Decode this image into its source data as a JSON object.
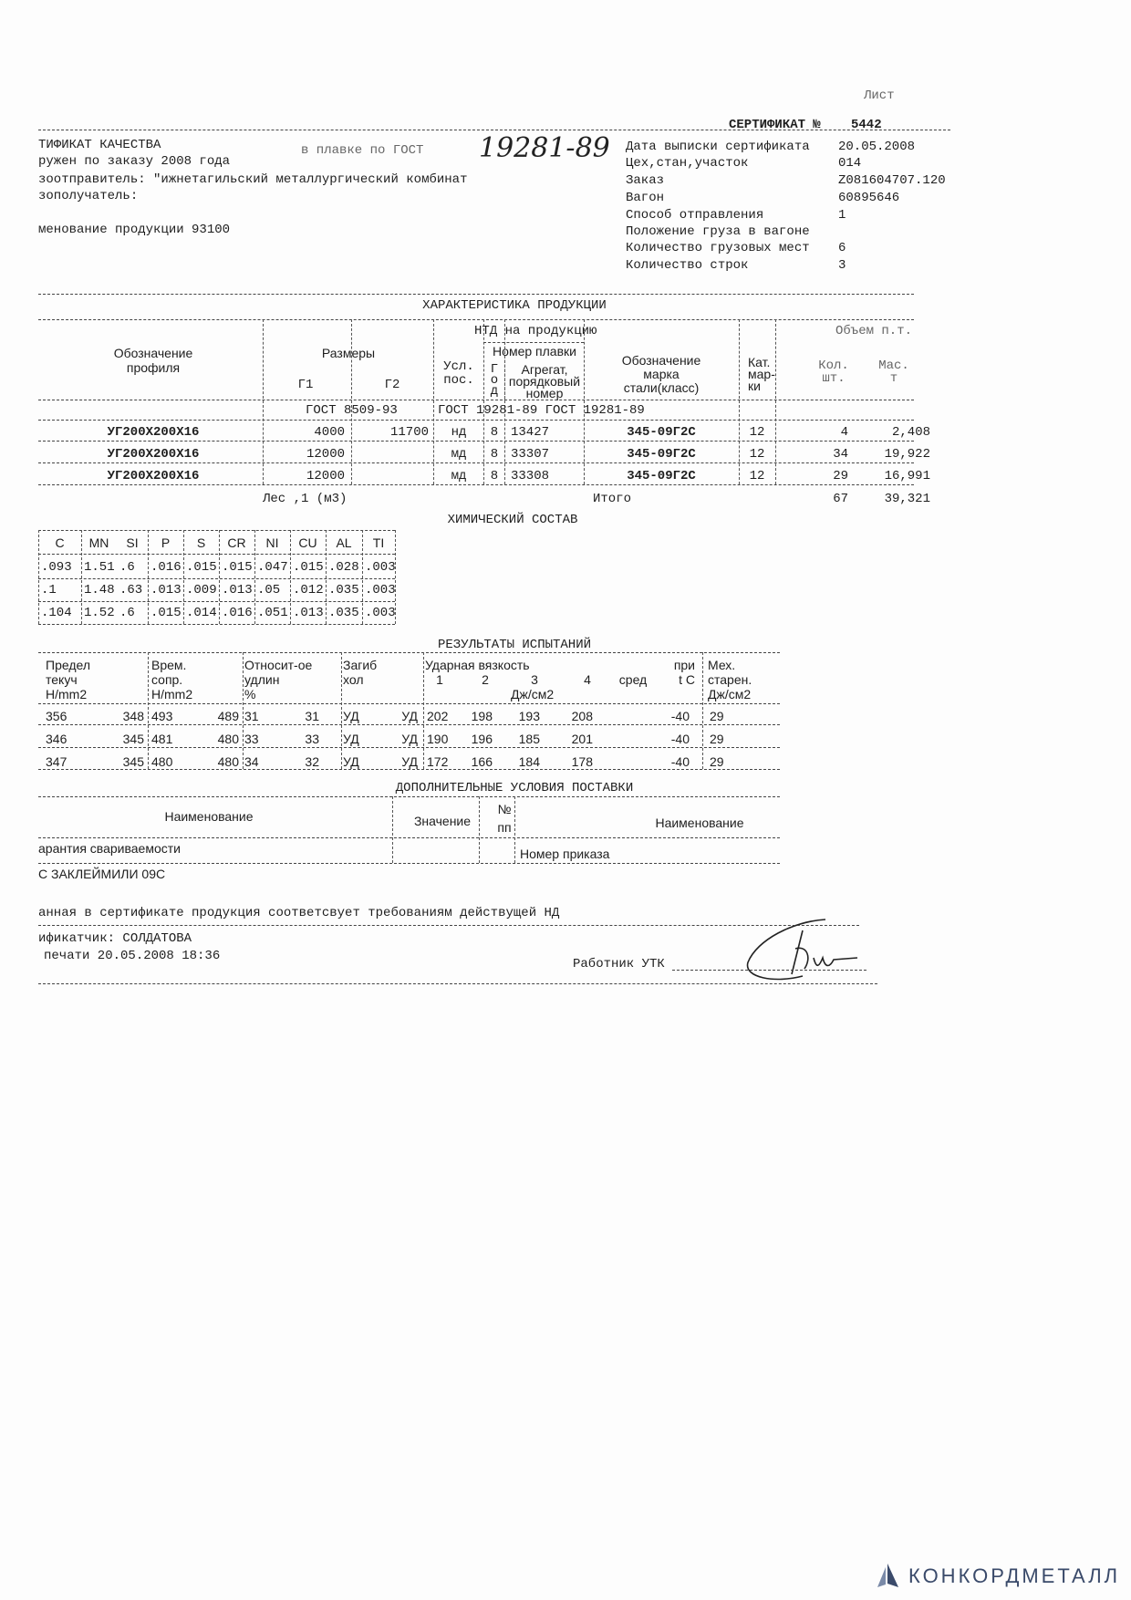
{
  "header": {
    "sheet_label": "Лист",
    "title": "СЕРТИФИКАТ №",
    "number": "5442",
    "left_lines": [
      "ТИФИКАТ КАЧЕСТВА",
      "ружен по заказу 2008 года",
      "зоотправитель: \"ижнетагильский металлургический комбинат",
      "зополучатель:",
      "менование продукции 93100"
    ],
    "stamp_text": "в плавке по ГОСТ",
    "handwritten_note": "19281-89",
    "fields": [
      {
        "label": "Дата выписки сертификата",
        "value": "20.05.2008"
      },
      {
        "label": "Цех,стан,участок",
        "value": "014"
      },
      {
        "label": "Заказ",
        "value": "Z081604707.120"
      },
      {
        "label": "Вагон",
        "value": "60895646"
      },
      {
        "label": "Способ отправления",
        "value": "1"
      },
      {
        "label": "Положение груза в вагоне",
        "value": ""
      },
      {
        "label": "Количество грузовых мест",
        "value": "6"
      },
      {
        "label": "Количество строк",
        "value": "3"
      }
    ]
  },
  "product": {
    "title": "ХАРАКТЕРИСТИКА ПРОДУКЦИИ",
    "ntd": "НТД на продукцию",
    "volume": "Объем п.т.",
    "h_profile": [
      "Обозначение",
      "профиля"
    ],
    "h_sizes": "Размеры",
    "h_g1": "Г1",
    "h_g2": "Г2",
    "h_usl": [
      "Усл.",
      "пос."
    ],
    "h_heat": "Номер плавки",
    "h_year": [
      "Г",
      "о",
      "д"
    ],
    "h_unit": [
      "Агрегат,",
      "порядковый",
      "номер"
    ],
    "h_grade": [
      "Обозначение",
      "марка",
      "стали(класс)"
    ],
    "h_cat": [
      "Кат.",
      "мар-",
      "ки"
    ],
    "h_qty": [
      "Кол.",
      "шт."
    ],
    "h_mass": [
      "Мас.",
      "т"
    ],
    "gost_row": [
      "ГОСТ 8509-93",
      "ГОСТ 19281-89 ГОСТ 19281-89"
    ],
    "rows": [
      [
        "УГ200Х200Х16",
        "4000",
        "11700",
        "нд",
        "8",
        "13427",
        "345-09Г2С",
        "12",
        "4",
        "2,408"
      ],
      [
        "УГ200Х200Х16",
        "12000",
        "",
        "мд",
        "8",
        "33307",
        "345-09Г2С",
        "12",
        "34",
        "19,922"
      ],
      [
        "УГ200Х200Х16",
        "12000",
        "",
        "мд",
        "8",
        "33308",
        "345-09Г2С",
        "12",
        "29",
        "16,991"
      ]
    ],
    "wood": "Лес ,1 (м3)",
    "total_label": "Итого",
    "total_qty": "67",
    "total_mass": "39,321"
  },
  "chemistry": {
    "title": "ХИМИЧЕСКИЙ СОСТАВ",
    "headers": [
      "C",
      "MN",
      "SI",
      "P",
      "S",
      "CR",
      "NI",
      "CU",
      "AL",
      "TI"
    ],
    "rows": [
      [
        ".093",
        "1.51",
        ".6",
        ".016",
        ".015",
        ".015",
        ".047",
        ".015",
        ".028",
        ".003"
      ],
      [
        ".1",
        "1.48",
        ".63",
        ".013",
        ".009",
        ".013",
        ".05",
        ".012",
        ".035",
        ".003"
      ],
      [
        ".104",
        "1.52",
        ".6",
        ".015",
        ".014",
        ".016",
        ".051",
        ".013",
        ".035",
        ".003"
      ]
    ]
  },
  "tests": {
    "title": "РЕЗУЛЬТАТЫ ИСПЫТАНИЙ",
    "h_yield": [
      "Предел",
      "текуч",
      "Н/mm2"
    ],
    "h_tensile": [
      "Врем.",
      "сопр.",
      "Н/mm2"
    ],
    "h_elong": [
      "Относит-ое",
      "удлин",
      "%"
    ],
    "h_bend": [
      "Загиб",
      "хол"
    ],
    "h_impact": "Ударная вязкость",
    "h_impact_cols": [
      "1",
      "2",
      "3",
      "4",
      "сред"
    ],
    "h_impact_unit": "Дж/см2",
    "h_temp": [
      "при",
      "t C"
    ],
    "h_aging": [
      "Мех.",
      "старен.",
      "Дж/см2"
    ],
    "rows": [
      [
        "356",
        "348",
        "493",
        "489",
        "31",
        "31",
        "УД",
        "УД",
        "202",
        "198",
        "193",
        "208",
        "",
        "-40",
        "29"
      ],
      [
        "346",
        "345",
        "481",
        "480",
        "33",
        "33",
        "УД",
        "УД",
        "190",
        "196",
        "185",
        "201",
        "",
        "-40",
        "29"
      ],
      [
        "347",
        "345",
        "480",
        "480",
        "34",
        "32",
        "УД",
        "УД",
        "172",
        "166",
        "184",
        "178",
        "",
        "-40",
        "29"
      ]
    ]
  },
  "extra": {
    "title": "ДОПОЛНИТЕЛЬНЫЕ УСЛОВИЯ ПОСТАВКИ",
    "h_name": "Наименование",
    "h_value": "Значение",
    "h_no": [
      "№",
      "пп"
    ],
    "h_name2": "Наименование",
    "row_name": "арантия свариваемости",
    "row_name2": "Номер приказа"
  },
  "footer": {
    "stamp_note": "С ЗАКЛЕЙМИЛИ 09С",
    "conformity": "анная в сертификате продукция соответсвует требованиям действущей НД",
    "certifier": "ификатчик:  СОЛДАТОВА",
    "printed": "печати 20.05.2008 18:36",
    "worker": "Работник УТК"
  },
  "logo": {
    "text": "КОНКОРДМЕТАЛЛ",
    "color": "#3a4a6a"
  }
}
